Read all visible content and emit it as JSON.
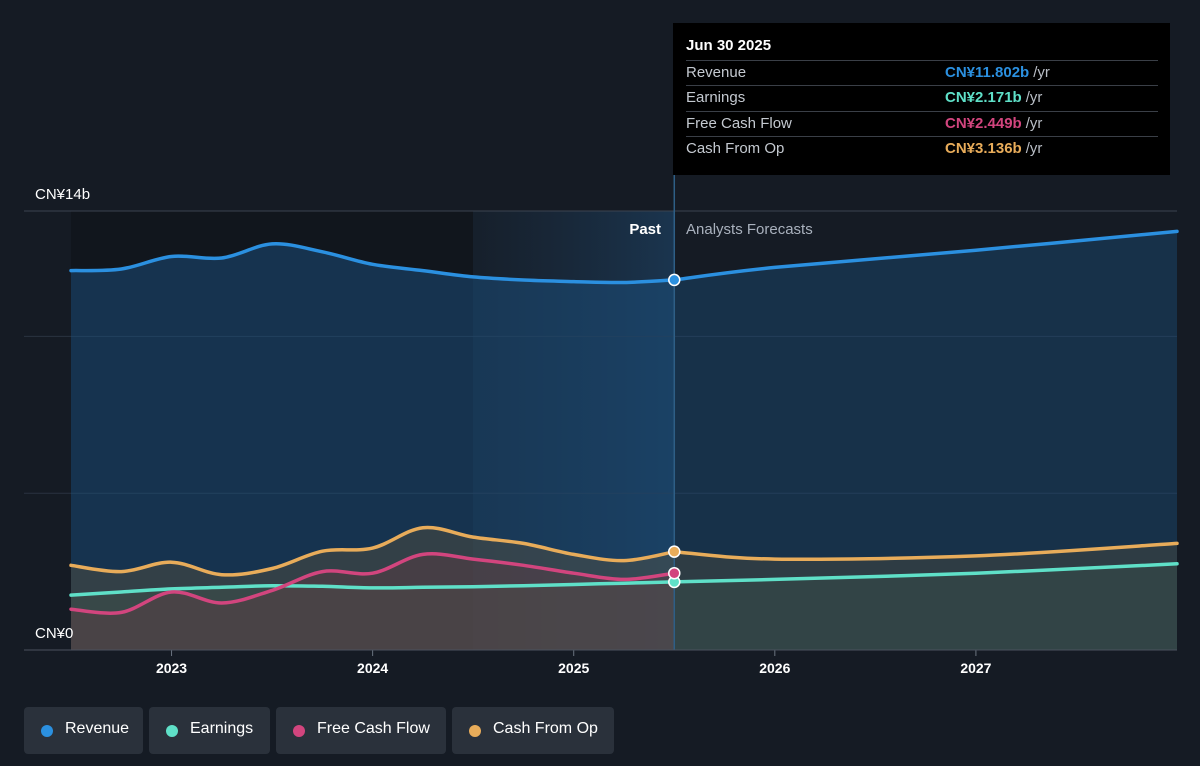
{
  "chart_data": {
    "type": "area",
    "y_axis": {
      "top_label": "CN¥14b",
      "bottom_label": "CN¥0",
      "ylim": [
        0,
        14
      ]
    },
    "x_ticks": [
      "2023",
      "2024",
      "2025",
      "2026",
      "2027"
    ],
    "xlim": [
      2022.5,
      2028.0
    ],
    "forecast_start": 2025.5,
    "regions": {
      "past": "Past",
      "forecast": "Analysts Forecasts"
    },
    "series": [
      {
        "name": "Revenue",
        "color": "#2b90e0",
        "x": [
          2022.5,
          2022.75,
          2023.0,
          2023.25,
          2023.5,
          2023.75,
          2024.0,
          2024.25,
          2024.5,
          2024.75,
          2025.0,
          2025.25,
          2025.5
        ],
        "values": [
          12.1,
          12.15,
          12.55,
          12.5,
          12.95,
          12.7,
          12.3,
          12.1,
          11.9,
          11.8,
          11.75,
          11.72,
          11.802
        ],
        "forecast_x": [
          2025.5,
          2026.0,
          2027.0,
          2028.0
        ],
        "forecast_values": [
          11.802,
          12.2,
          12.75,
          13.35
        ]
      },
      {
        "name": "Earnings",
        "color": "#5fe0c8",
        "x": [
          2022.5,
          2022.75,
          2023.0,
          2023.25,
          2023.5,
          2023.75,
          2024.0,
          2024.25,
          2024.5,
          2024.75,
          2025.0,
          2025.25,
          2025.5
        ],
        "values": [
          1.75,
          1.85,
          1.95,
          2.0,
          2.05,
          2.03,
          1.98,
          2.0,
          2.02,
          2.05,
          2.09,
          2.13,
          2.171
        ],
        "forecast_x": [
          2025.5,
          2026.0,
          2027.0,
          2028.0
        ],
        "forecast_values": [
          2.171,
          2.25,
          2.45,
          2.75
        ]
      },
      {
        "name": "Free Cash Flow",
        "color": "#d2457e",
        "x": [
          2022.5,
          2022.75,
          2023.0,
          2023.25,
          2023.5,
          2023.75,
          2024.0,
          2024.25,
          2024.5,
          2024.75,
          2025.0,
          2025.25,
          2025.5
        ],
        "values": [
          1.3,
          1.2,
          1.85,
          1.5,
          1.9,
          2.5,
          2.45,
          3.05,
          2.9,
          2.7,
          2.45,
          2.25,
          2.449
        ]
      },
      {
        "name": "Cash From Op",
        "color": "#e8ac5a",
        "x": [
          2022.5,
          2022.75,
          2023.0,
          2023.25,
          2023.5,
          2023.75,
          2024.0,
          2024.25,
          2024.5,
          2024.75,
          2025.0,
          2025.25,
          2025.5
        ],
        "values": [
          2.7,
          2.5,
          2.8,
          2.4,
          2.6,
          3.15,
          3.25,
          3.9,
          3.6,
          3.4,
          3.05,
          2.85,
          3.136
        ],
        "forecast_x": [
          2025.5,
          2026.0,
          2027.0,
          2028.0
        ],
        "forecast_values": [
          3.136,
          2.9,
          3.0,
          3.4
        ]
      }
    ]
  },
  "tooltip": {
    "date": "Jun 30 2025",
    "rows": [
      {
        "label": "Revenue",
        "value": "CN¥11.802b",
        "unit": "/yr",
        "color": "#2b90e0"
      },
      {
        "label": "Earnings",
        "value": "CN¥2.171b",
        "unit": "/yr",
        "color": "#5fe0c8"
      },
      {
        "label": "Free Cash Flow",
        "value": "CN¥2.449b",
        "unit": "/yr",
        "color": "#d2457e"
      },
      {
        "label": "Cash From Op",
        "value": "CN¥3.136b",
        "unit": "/yr",
        "color": "#e8ac5a"
      }
    ]
  },
  "legend": [
    {
      "label": "Revenue",
      "color": "#2b90e0"
    },
    {
      "label": "Earnings",
      "color": "#5fe0c8"
    },
    {
      "label": "Free Cash Flow",
      "color": "#d2457e"
    },
    {
      "label": "Cash From Op",
      "color": "#e8ac5a"
    }
  ]
}
